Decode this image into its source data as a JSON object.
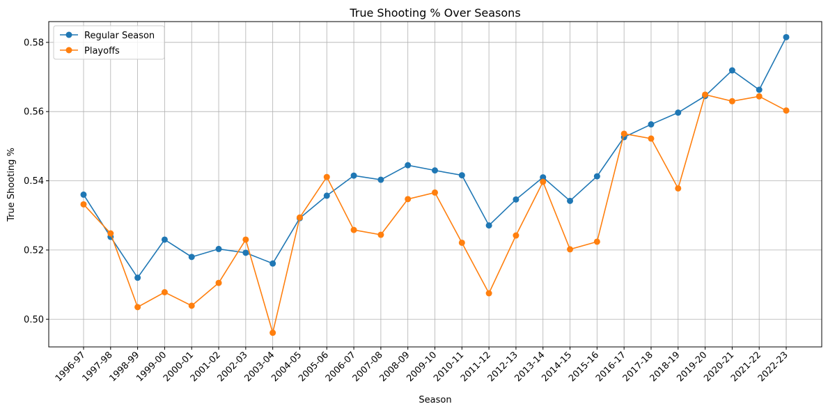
{
  "chart_data": {
    "type": "line",
    "title": "True Shooting % Over Seasons",
    "xlabel": "Season",
    "ylabel": "True Shooting %",
    "categories": [
      "1996-97",
      "1997-98",
      "1998-99",
      "1999-00",
      "2000-01",
      "2001-02",
      "2002-03",
      "2003-04",
      "2004-05",
      "2005-06",
      "2006-07",
      "2007-08",
      "2008-09",
      "2009-10",
      "2010-11",
      "2011-12",
      "2012-13",
      "2013-14",
      "2014-15",
      "2015-16",
      "2016-17",
      "2017-18",
      "2018-19",
      "2019-20",
      "2020-21",
      "2021-22",
      "2022-23"
    ],
    "ylim": [
      0.492,
      0.586
    ],
    "yticks": [
      "0.50",
      "0.52",
      "0.54",
      "0.56",
      "0.58"
    ],
    "grid": true,
    "legend_position": "top-left",
    "series": [
      {
        "name": "Regular Season",
        "color": "#1f77b4",
        "values": [
          0.536,
          0.5238,
          0.512,
          0.523,
          0.518,
          0.5203,
          0.5192,
          0.5161,
          0.5292,
          0.5357,
          0.5415,
          0.5403,
          0.5445,
          0.543,
          0.5416,
          0.5271,
          0.5346,
          0.541,
          0.5342,
          0.5413,
          0.5526,
          0.5563,
          0.5597,
          0.5645,
          0.5719,
          0.5663,
          0.5815
        ]
      },
      {
        "name": "Playoffs",
        "color": "#ff7f0e",
        "values": [
          0.5332,
          0.5248,
          0.5035,
          0.5078,
          0.5039,
          0.5105,
          0.523,
          0.4961,
          0.5294,
          0.5411,
          0.5258,
          0.5244,
          0.5347,
          0.5366,
          0.5221,
          0.5075,
          0.5242,
          0.5397,
          0.5202,
          0.5224,
          0.5536,
          0.5522,
          0.5378,
          0.5649,
          0.563,
          0.5644,
          0.5603
        ]
      }
    ]
  }
}
